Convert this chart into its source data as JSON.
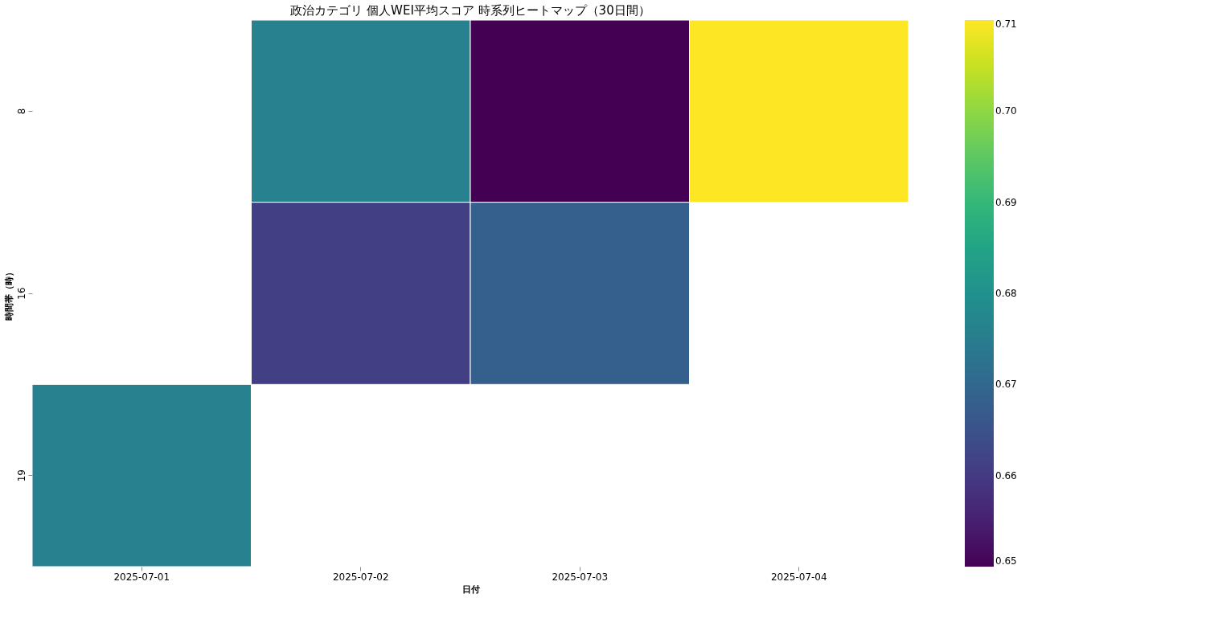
{
  "chart_data": {
    "type": "heatmap",
    "title": "政治カテゴリ 個人WEI平均スコア 時系列ヒートマップ（30日間）",
    "xlabel": "日付",
    "ylabel": "時間帯（時）",
    "categories": [
      "2025-07-01",
      "2025-07-02",
      "2025-07-03",
      "2025-07-04"
    ],
    "y_categories": [
      "8",
      "16",
      "19"
    ],
    "cells": [
      [
        null,
        0.676,
        0.65,
        0.71
      ],
      [
        null,
        0.661,
        0.668,
        null
      ],
      [
        0.676,
        null,
        null,
        null
      ]
    ],
    "clim": [
      0.65,
      0.71
    ],
    "cticks": [
      0.65,
      0.66,
      0.67,
      0.68,
      0.69,
      {
        "value": 0.7,
        "label": "0.70"
      },
      0.71
    ]
  }
}
